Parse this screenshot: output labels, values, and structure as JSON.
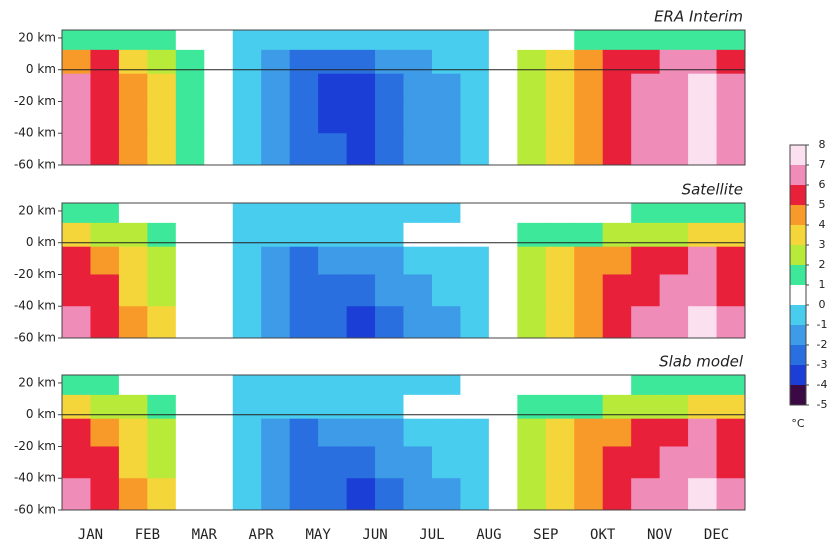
{
  "chart_data": [
    {
      "type": "heatmap",
      "title": "ERA Interim",
      "y": [
        20,
        5,
        -10,
        -30,
        -50
      ],
      "ylim": [
        -60,
        25
      ],
      "yticks": [
        {
          "value": 20,
          "label": "20 km"
        },
        {
          "value": 0,
          "label": "0 km"
        },
        {
          "value": -20,
          "label": "-20 km"
        },
        {
          "value": -40,
          "label": "-40 km"
        },
        {
          "value": -60,
          "label": "-60 km"
        }
      ],
      "z": [
        [
          1.5,
          1.5,
          1.5,
          1.5,
          0.5,
          0.5,
          -0.5,
          -0.5,
          -0.5,
          -0.5,
          -0.5,
          -0.5,
          -0.5,
          -0.5,
          -0.5,
          0.5,
          0.5,
          0.5,
          1.5,
          1.5,
          1.5,
          1.5,
          1.5,
          1.5
        ],
        [
          4.5,
          5.5,
          3.5,
          2.5,
          1.5,
          0.5,
          -0.5,
          -1.5,
          -2.5,
          -2.5,
          -2.5,
          -1.5,
          -1.5,
          -0.5,
          -0.5,
          0.5,
          2.5,
          3.5,
          4.5,
          5.5,
          5.5,
          6.5,
          6.5,
          5.5
        ],
        [
          6.5,
          5.5,
          4.5,
          3.5,
          1.5,
          0.5,
          -0.5,
          -1.5,
          -2.5,
          -3.5,
          -3.5,
          -2.5,
          -1.5,
          -1.5,
          -0.5,
          0.5,
          2.5,
          3.5,
          4.5,
          5.5,
          6.5,
          6.5,
          7.5,
          6.5
        ],
        [
          6.5,
          5.5,
          4.5,
          3.5,
          1.5,
          0.5,
          -0.5,
          -1.5,
          -2.5,
          -3.5,
          -3.5,
          -2.5,
          -1.5,
          -1.5,
          -0.5,
          0.5,
          2.5,
          3.5,
          4.5,
          5.5,
          6.5,
          6.5,
          7.5,
          6.5
        ],
        [
          6.5,
          5.5,
          4.5,
          3.5,
          1.5,
          0.5,
          -0.5,
          -1.5,
          -2.5,
          -2.5,
          -3.5,
          -2.5,
          -1.5,
          -1.5,
          -0.5,
          0.5,
          2.5,
          3.5,
          4.5,
          5.5,
          6.5,
          6.5,
          7.5,
          6.5
        ]
      ]
    },
    {
      "type": "heatmap",
      "title": "Satellite",
      "y": [
        20,
        5,
        -10,
        -30,
        -50
      ],
      "ylim": [
        -60,
        25
      ],
      "yticks": [
        {
          "value": 20,
          "label": "20 km"
        },
        {
          "value": 0,
          "label": "0 km"
        },
        {
          "value": -20,
          "label": "-20 km"
        },
        {
          "value": -40,
          "label": "-40 km"
        },
        {
          "value": -60,
          "label": "-60 km"
        }
      ],
      "z": [
        [
          1.5,
          1.5,
          0.5,
          0.5,
          0.5,
          0.5,
          -0.5,
          -0.5,
          -0.5,
          -0.5,
          -0.5,
          -0.5,
          -0.5,
          -0.5,
          0.5,
          0.5,
          0.5,
          0.5,
          0.5,
          0.5,
          1.5,
          1.5,
          1.5,
          1.5
        ],
        [
          3.5,
          2.5,
          2.5,
          1.5,
          0.5,
          0.5,
          -0.5,
          -0.5,
          -0.5,
          -0.5,
          -0.5,
          -0.5,
          0.5,
          0.5,
          0.5,
          0.5,
          1.5,
          1.5,
          1.5,
          2.5,
          2.5,
          2.5,
          3.5,
          3.5
        ],
        [
          5.5,
          4.5,
          3.5,
          2.5,
          0.5,
          0.5,
          -0.5,
          -1.5,
          -2.5,
          -1.5,
          -1.5,
          -1.5,
          -0.5,
          -0.5,
          -0.5,
          0.5,
          2.5,
          3.5,
          4.5,
          4.5,
          5.5,
          5.5,
          6.5,
          5.5
        ],
        [
          5.5,
          5.5,
          3.5,
          2.5,
          0.5,
          0.5,
          -0.5,
          -1.5,
          -2.5,
          -2.5,
          -2.5,
          -1.5,
          -1.5,
          -0.5,
          -0.5,
          0.5,
          2.5,
          3.5,
          4.5,
          5.5,
          5.5,
          6.5,
          6.5,
          5.5
        ],
        [
          6.5,
          5.5,
          4.5,
          3.5,
          0.5,
          0.5,
          -0.5,
          -1.5,
          -2.5,
          -2.5,
          -3.5,
          -2.5,
          -1.5,
          -1.5,
          -0.5,
          0.5,
          2.5,
          3.5,
          4.5,
          5.5,
          6.5,
          6.5,
          7.5,
          6.5
        ]
      ]
    },
    {
      "type": "heatmap",
      "title": "Slab model",
      "y": [
        20,
        5,
        -10,
        -30,
        -50
      ],
      "ylim": [
        -60,
        25
      ],
      "yticks": [
        {
          "value": 20,
          "label": "20 km"
        },
        {
          "value": 0,
          "label": "0 km"
        },
        {
          "value": -20,
          "label": "-20 km"
        },
        {
          "value": -40,
          "label": "-40 km"
        },
        {
          "value": -60,
          "label": "-60 km"
        }
      ],
      "z": [
        [
          1.5,
          1.5,
          0.5,
          0.5,
          0.5,
          0.5,
          -0.5,
          -0.5,
          -0.5,
          -0.5,
          -0.5,
          -0.5,
          -0.5,
          -0.5,
          0.5,
          0.5,
          0.5,
          0.5,
          0.5,
          0.5,
          1.5,
          1.5,
          1.5,
          1.5
        ],
        [
          3.5,
          2.5,
          2.5,
          1.5,
          0.5,
          0.5,
          -0.5,
          -0.5,
          -0.5,
          -0.5,
          -0.5,
          -0.5,
          0.5,
          0.5,
          0.5,
          0.5,
          1.5,
          1.5,
          1.5,
          2.5,
          2.5,
          2.5,
          3.5,
          3.5
        ],
        [
          5.5,
          4.5,
          3.5,
          2.5,
          0.5,
          0.5,
          -0.5,
          -1.5,
          -2.5,
          -1.5,
          -1.5,
          -1.5,
          -0.5,
          -0.5,
          -0.5,
          0.5,
          2.5,
          3.5,
          4.5,
          4.5,
          5.5,
          5.5,
          6.5,
          5.5
        ],
        [
          5.5,
          5.5,
          3.5,
          2.5,
          0.5,
          0.5,
          -0.5,
          -1.5,
          -2.5,
          -2.5,
          -2.5,
          -1.5,
          -1.5,
          -0.5,
          -0.5,
          0.5,
          2.5,
          3.5,
          4.5,
          5.5,
          5.5,
          6.5,
          6.5,
          5.5
        ],
        [
          6.5,
          5.5,
          4.5,
          3.5,
          0.5,
          0.5,
          -0.5,
          -1.5,
          -2.5,
          -2.5,
          -3.5,
          -2.5,
          -1.5,
          -1.5,
          -0.5,
          0.5,
          2.5,
          3.5,
          4.5,
          5.5,
          6.5,
          6.5,
          7.5,
          6.5
        ]
      ]
    }
  ],
  "months": [
    "JAN",
    "FEB",
    "MAR",
    "APR",
    "MAY",
    "JUN",
    "JUL",
    "AUG",
    "SEP",
    "OKT",
    "NOV",
    "DEC"
  ],
  "colorbar": {
    "ticks": [
      -5,
      -4,
      -3,
      -2,
      -1,
      0,
      1,
      2,
      3,
      4,
      5,
      6,
      7,
      8
    ],
    "colors": [
      "#3b0a45",
      "#1b3fd6",
      "#2a6fe0",
      "#3d9be8",
      "#49cdee",
      "#ffffff",
      "#3ee89a",
      "#b8ea3a",
      "#f4d63a",
      "#f79a2a",
      "#e8203a",
      "#f08cb8",
      "#fbe0ef"
    ],
    "unit": "°C"
  }
}
